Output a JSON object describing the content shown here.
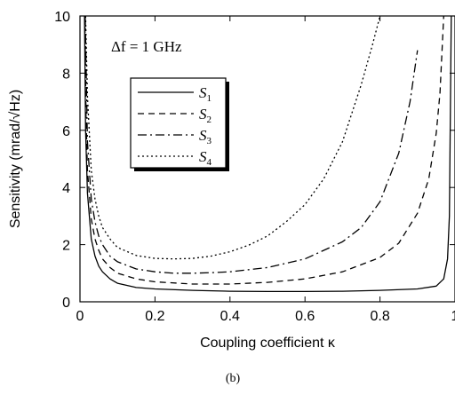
{
  "chart_data": {
    "type": "line",
    "xlabel": "Coupling coefficient  κ",
    "ylabel": "Sensitivity  (mrad/√Hz)",
    "annotation": "Δf = 1 GHz",
    "caption": "(b)",
    "xlim": [
      0,
      1
    ],
    "ylim": [
      0,
      10
    ],
    "x_ticks": [
      {
        "value": 0,
        "label": "0"
      },
      {
        "value": 0.2,
        "label": "0.2"
      },
      {
        "value": 0.4,
        "label": "0.4"
      },
      {
        "value": 0.6,
        "label": "0.6"
      },
      {
        "value": 0.8,
        "label": "0.8"
      },
      {
        "value": 1,
        "label": "1"
      }
    ],
    "y_ticks": [
      {
        "value": 0,
        "label": "0"
      },
      {
        "value": 2,
        "label": "2"
      },
      {
        "value": 4,
        "label": "4"
      },
      {
        "value": 6,
        "label": "6"
      },
      {
        "value": 8,
        "label": "8"
      },
      {
        "value": 10,
        "label": "10"
      }
    ],
    "legend_position": "upper-left",
    "grid": false,
    "series": [
      {
        "name": "S1",
        "sub": "1",
        "dash": "",
        "x": [
          0.012,
          0.015,
          0.02,
          0.03,
          0.04,
          0.05,
          0.06,
          0.08,
          0.1,
          0.15,
          0.2,
          0.3,
          0.4,
          0.5,
          0.6,
          0.7,
          0.8,
          0.9,
          0.95,
          0.97,
          0.98,
          0.985,
          0.99
        ],
        "y": [
          10.0,
          6.0,
          3.8,
          2.2,
          1.6,
          1.25,
          1.05,
          0.8,
          0.65,
          0.5,
          0.45,
          0.4,
          0.37,
          0.36,
          0.36,
          0.37,
          0.4,
          0.45,
          0.55,
          0.8,
          1.5,
          3.0,
          10.0
        ]
      },
      {
        "name": "S2",
        "sub": "2",
        "dash": "7,5",
        "x": [
          0.013,
          0.016,
          0.02,
          0.03,
          0.04,
          0.05,
          0.06,
          0.08,
          0.1,
          0.15,
          0.2,
          0.3,
          0.4,
          0.5,
          0.6,
          0.7,
          0.8,
          0.85,
          0.9,
          0.93,
          0.95,
          0.96,
          0.97
        ],
        "y": [
          10.0,
          6.5,
          4.6,
          2.9,
          2.2,
          1.8,
          1.5,
          1.2,
          1.0,
          0.8,
          0.7,
          0.62,
          0.62,
          0.68,
          0.8,
          1.05,
          1.55,
          2.05,
          3.1,
          4.3,
          5.9,
          7.3,
          10.0
        ]
      },
      {
        "name": "S3",
        "sub": "3",
        "dash": "10,4,2,4",
        "x": [
          0.014,
          0.02,
          0.03,
          0.04,
          0.05,
          0.06,
          0.08,
          0.1,
          0.15,
          0.2,
          0.25,
          0.3,
          0.35,
          0.4,
          0.5,
          0.6,
          0.7,
          0.75,
          0.8,
          0.85,
          0.88,
          0.9
        ],
        "y": [
          10.0,
          5.6,
          3.6,
          2.8,
          2.3,
          2.0,
          1.6,
          1.4,
          1.15,
          1.05,
          1.0,
          1.0,
          1.02,
          1.05,
          1.2,
          1.5,
          2.1,
          2.6,
          3.5,
          5.2,
          7.0,
          8.8
        ]
      },
      {
        "name": "S4",
        "sub": "4",
        "dash": "2,3",
        "x": [
          0.015,
          0.02,
          0.03,
          0.04,
          0.05,
          0.06,
          0.08,
          0.1,
          0.15,
          0.2,
          0.25,
          0.3,
          0.35,
          0.4,
          0.45,
          0.5,
          0.55,
          0.6,
          0.65,
          0.7,
          0.75,
          0.78,
          0.8
        ],
        "y": [
          10.0,
          7.2,
          4.6,
          3.6,
          3.0,
          2.6,
          2.2,
          1.9,
          1.62,
          1.52,
          1.5,
          1.52,
          1.6,
          1.75,
          1.98,
          2.3,
          2.8,
          3.4,
          4.3,
          5.6,
          7.6,
          9.0,
          10.0
        ]
      }
    ]
  }
}
